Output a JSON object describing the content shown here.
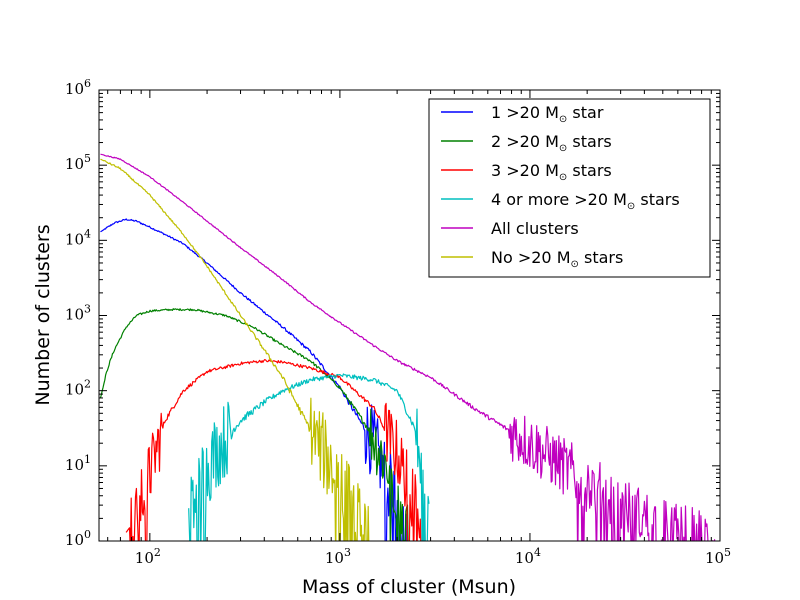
{
  "chart_data": {
    "type": "line",
    "title": "",
    "xlabel": "Mass of cluster (Msun)",
    "ylabel": "Number of clusters",
    "xscale": "log",
    "yscale": "log",
    "xlim": [
      54,
      100000
    ],
    "ylim": [
      1,
      1000000
    ],
    "x_ticks": [
      {
        "base": "10",
        "exp": "2",
        "value": 100
      },
      {
        "base": "10",
        "exp": "3",
        "value": 1000
      },
      {
        "base": "10",
        "exp": "4",
        "value": 10000
      },
      {
        "base": "10",
        "exp": "5",
        "value": 100000
      }
    ],
    "y_ticks": [
      {
        "base": "10",
        "exp": "0",
        "value": 1
      },
      {
        "base": "10",
        "exp": "1",
        "value": 10
      },
      {
        "base": "10",
        "exp": "2",
        "value": 100
      },
      {
        "base": "10",
        "exp": "3",
        "value": 1000
      },
      {
        "base": "10",
        "exp": "4",
        "value": 10000
      },
      {
        "base": "10",
        "exp": "5",
        "value": 100000
      },
      {
        "base": "10",
        "exp": "6",
        "value": 1000000
      }
    ],
    "legend_position": "upper-right",
    "series": [
      {
        "name": "1 >20 M☉ star",
        "label_pre": "1 >20 M",
        "label_sub": "⊙",
        "label_post": " star",
        "color": "#0000ff",
        "noise": 0.18,
        "cutoff": 2350,
        "x": [
          55,
          65,
          75,
          85,
          100,
          120,
          150,
          200,
          300,
          500,
          700,
          1000,
          1500,
          2000,
          2350
        ],
        "y": [
          13000,
          17000,
          19000,
          18000,
          15000,
          12000,
          9000,
          5000,
          2000,
          700,
          330,
          110,
          20,
          3,
          1
        ]
      },
      {
        "name": "2 >20 M☉ stars",
        "label_pre": "2 >20 M",
        "label_sub": "⊙",
        "label_post": " stars",
        "color": "#008000",
        "noise": 0.15,
        "cutoff": 2450,
        "x": [
          55,
          60,
          65,
          75,
          85,
          100,
          130,
          170,
          250,
          350,
          500,
          700,
          1000,
          1500,
          2000,
          2450
        ],
        "y": [
          80,
          200,
          350,
          700,
          1000,
          1150,
          1200,
          1200,
          1000,
          700,
          400,
          250,
          110,
          25,
          5,
          1
        ]
      },
      {
        "name": "3 >20 M☉ stars",
        "label_pre": "3 >20 M",
        "label_sub": "⊙",
        "label_post": " stars",
        "color": "#ff0000",
        "noise": 0.15,
        "cutoff": 2900,
        "x": [
          75,
          85,
          100,
          120,
          150,
          200,
          300,
          400,
          500,
          700,
          1000,
          1500,
          2000,
          2500,
          2900
        ],
        "y": [
          1.3,
          2,
          8,
          40,
          100,
          180,
          230,
          250,
          240,
          200,
          150,
          60,
          15,
          3,
          1
        ]
      },
      {
        "name": "4 or more >20 M☉ stars",
        "label_pre": "4 or more >20 M",
        "label_sub": "⊙",
        "label_post": " stars",
        "color": "#00bfbf",
        "noise": 0.2,
        "cutoff": 2950,
        "x": [
          160,
          180,
          220,
          300,
          400,
          500,
          700,
          1000,
          1500,
          2000,
          2500,
          2950
        ],
        "y": [
          2,
          5,
          15,
          40,
          70,
          100,
          140,
          160,
          140,
          100,
          30,
          1
        ]
      },
      {
        "name": "All clusters",
        "label_pre": "All clusters",
        "label_sub": "",
        "label_post": "",
        "color": "#bf00bf",
        "noise": 0.12,
        "cutoff": 95000,
        "x": [
          55,
          70,
          100,
          150,
          200,
          300,
          500,
          700,
          1000,
          1500,
          2000,
          3000,
          5000,
          7000,
          10000,
          20000,
          30000,
          50000,
          95000
        ],
        "y": [
          140000,
          120000,
          70000,
          32000,
          18000,
          8000,
          3000,
          1500,
          800,
          400,
          250,
          150,
          60,
          35,
          20,
          6,
          3,
          1.5,
          1
        ]
      },
      {
        "name": "No >20 M☉ stars",
        "label_pre": "No >20 M",
        "label_sub": "⊙",
        "label_post": " stars",
        "color": "#bfbf00",
        "noise": 0.2,
        "cutoff": 1450,
        "x": [
          55,
          70,
          100,
          150,
          200,
          300,
          400,
          500,
          700,
          900,
          1100,
          1300,
          1450
        ],
        "y": [
          120000,
          90000,
          40000,
          12000,
          4500,
          1000,
          350,
          150,
          30,
          10,
          4,
          1.5,
          1
        ]
      }
    ]
  }
}
